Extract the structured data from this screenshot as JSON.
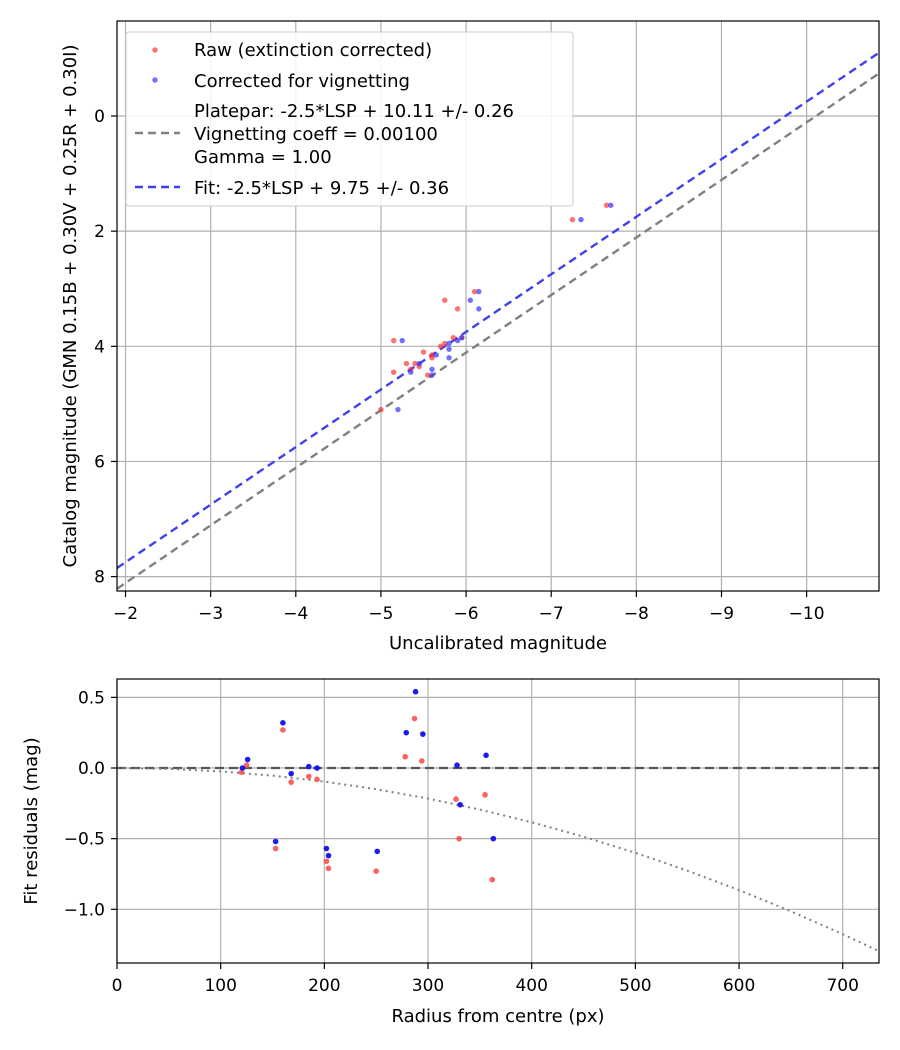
{
  "colors": {
    "raw": "#ff3333",
    "corrected": "#3333ff",
    "platepar_line": "#808080",
    "fit_line": "#4040ee",
    "residual_raw": "#ff4444",
    "residual_corrected": "#1010ee",
    "zero_line": "#555555",
    "vignetting_curve": "#808080",
    "grid": "#b0b0b0"
  },
  "chart_data": [
    {
      "type": "scatter",
      "title": "",
      "xlabel": "Uncalibrated magnitude",
      "ylabel": "Catalog magnitude (GMN 0.15B + 0.30V + 0.25R + 0.30I)",
      "xlim": [
        -1.9,
        -10.85
      ],
      "ylim": [
        8.25,
        -1.65
      ],
      "x_ticks": [
        -2,
        -3,
        -4,
        -5,
        -6,
        -7,
        -8,
        -9,
        -10
      ],
      "x_tick_labels": [
        "−2",
        "−3",
        "−4",
        "−5",
        "−6",
        "−7",
        "−8",
        "−9",
        "−10"
      ],
      "y_ticks": [
        0,
        2,
        4,
        6,
        8
      ],
      "y_tick_labels": [
        "0",
        "2",
        "4",
        "6",
        "8"
      ],
      "grid": true,
      "legend_position": "top-left",
      "legend": [
        "Raw (extinction corrected)",
        "Corrected for vignetting",
        "Platepar: -2.5*LSP + 10.11 +/- 0.26",
        "Vignetting coeff = 0.00100",
        "Gamma = 1.00",
        "Fit: -2.5*LSP + 9.75 +/- 0.36"
      ],
      "series": [
        {
          "name": "Raw (extinction corrected)",
          "kind": "scatter",
          "x": [
            -5.0,
            -5.15,
            -5.15,
            -5.3,
            -5.35,
            -5.4,
            -5.45,
            -5.5,
            -5.55,
            -5.6,
            -5.6,
            -5.7,
            -5.75,
            -5.75,
            -5.85,
            -5.9,
            -5.95,
            -6.1,
            -7.25,
            -7.65
          ],
          "y": [
            5.1,
            4.45,
            3.9,
            4.3,
            4.4,
            4.3,
            4.35,
            4.1,
            4.5,
            4.15,
            4.2,
            4.0,
            3.2,
            3.95,
            3.85,
            3.35,
            3.85,
            3.05,
            1.8,
            1.55
          ]
        },
        {
          "name": "Corrected for vignetting",
          "kind": "scatter",
          "x": [
            -5.2,
            -5.25,
            -5.35,
            -5.45,
            -5.6,
            -5.6,
            -5.65,
            -5.8,
            -5.8,
            -5.8,
            -5.9,
            -5.95,
            -6.05,
            -6.15,
            -6.15,
            -7.35,
            -7.7
          ],
          "y": [
            5.1,
            3.9,
            4.45,
            4.3,
            4.4,
            4.5,
            4.15,
            4.05,
            3.95,
            4.2,
            3.9,
            3.85,
            3.2,
            3.05,
            3.35,
            1.8,
            1.55
          ]
        },
        {
          "name": "Platepar: -2.5*LSP + 10.11 +/- 0.26",
          "kind": "line",
          "dash": "8,5",
          "x": [
            -1.9,
            -10.85
          ],
          "y": [
            8.21,
            -0.74
          ]
        },
        {
          "name": "Fit: -2.5*LSP + 9.75 +/- 0.36",
          "kind": "line",
          "dash": "8,5",
          "x": [
            -1.9,
            -10.85
          ],
          "y": [
            7.85,
            -1.1
          ]
        }
      ]
    },
    {
      "type": "scatter",
      "title": "",
      "xlabel": "Radius from centre (px)",
      "ylabel": "Fit residuals (mag)",
      "xlim": [
        0,
        735
      ],
      "ylim": [
        -1.38,
        0.63
      ],
      "x_ticks": [
        0,
        100,
        200,
        300,
        400,
        500,
        600,
        700
      ],
      "x_tick_labels": [
        "0",
        "100",
        "200",
        "300",
        "400",
        "500",
        "600",
        "700"
      ],
      "y_ticks": [
        0.5,
        0.0,
        -0.5,
        -1.0
      ],
      "y_tick_labels": [
        "0.5",
        "0.0",
        "−0.5",
        "−1.0"
      ],
      "grid": true,
      "series": [
        {
          "name": "Raw residuals",
          "kind": "scatter",
          "x": [
            120,
            125,
            153,
            160,
            168,
            185,
            193,
            202,
            204,
            250,
            278,
            287,
            294,
            327,
            330,
            355,
            362
          ],
          "y": [
            -0.03,
            0.02,
            -0.57,
            0.27,
            -0.1,
            -0.06,
            -0.08,
            -0.66,
            -0.71,
            -0.73,
            0.08,
            0.35,
            0.05,
            -0.22,
            -0.5,
            -0.19,
            -0.79
          ]
        },
        {
          "name": "Corrected residuals",
          "kind": "scatter",
          "x": [
            121,
            126,
            153,
            160,
            168,
            185,
            193,
            202,
            204,
            251,
            279,
            288,
            295,
            328,
            331,
            356,
            363
          ],
          "y": [
            0.0,
            0.06,
            -0.52,
            0.32,
            -0.04,
            0.01,
            0.0,
            -0.57,
            -0.62,
            -0.59,
            0.25,
            0.54,
            0.24,
            0.02,
            -0.26,
            0.09,
            -0.5
          ]
        },
        {
          "name": "Zero line",
          "kind": "line",
          "dash": "9,5",
          "x": [
            0,
            735
          ],
          "y": [
            0,
            0
          ]
        },
        {
          "name": "Vignetting curve",
          "kind": "curve",
          "dash": "2,4",
          "x": [
            0,
            50,
            100,
            150,
            200,
            250,
            300,
            350,
            400,
            450,
            500,
            550,
            600,
            650,
            700,
            735
          ],
          "y": [
            0.0,
            -0.006,
            -0.024,
            -0.054,
            -0.096,
            -0.15,
            -0.216,
            -0.294,
            -0.384,
            -0.486,
            -0.6,
            -0.726,
            -0.864,
            -1.014,
            -1.176,
            -1.296
          ]
        }
      ]
    }
  ]
}
